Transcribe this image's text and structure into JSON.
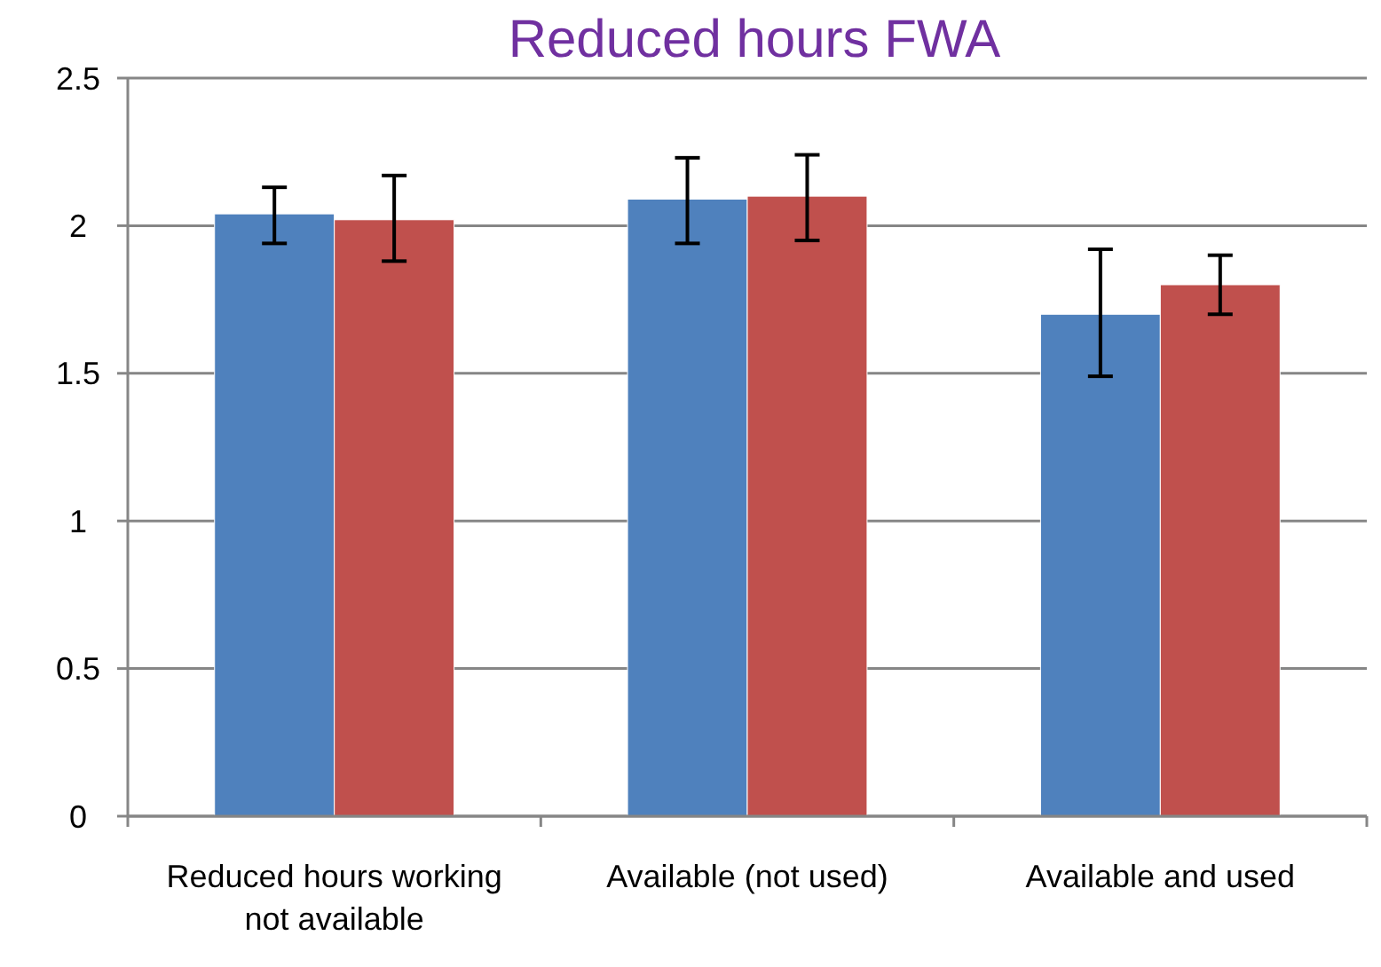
{
  "chart_data": {
    "type": "bar",
    "title": "Reduced hours FWA",
    "categories": [
      "Reduced hours working not available",
      "Available (not used)",
      "Available and used"
    ],
    "series": [
      {
        "color": "#4f81bd",
        "values": [
          2.04,
          2.09,
          1.7
        ],
        "errors": [
          [
            1.94,
            2.13
          ],
          [
            1.94,
            2.23
          ],
          [
            1.49,
            1.92
          ]
        ]
      },
      {
        "color": "#c0504d",
        "values": [
          2.02,
          2.1,
          1.8
        ],
        "errors": [
          [
            1.88,
            2.17
          ],
          [
            1.95,
            2.24
          ],
          [
            1.7,
            1.9
          ]
        ]
      }
    ],
    "ylim": [
      0,
      2.5
    ],
    "yticks": [
      0,
      0.5,
      1,
      1.5,
      2,
      2.5
    ],
    "grid": "y"
  }
}
